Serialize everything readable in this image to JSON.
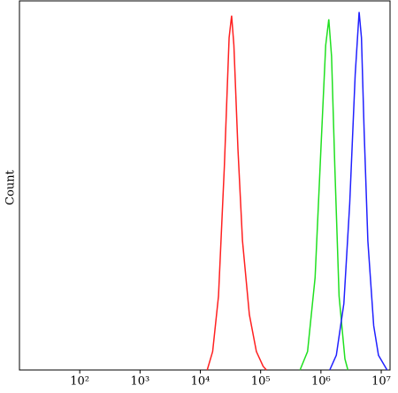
{
  "chart_data": {
    "type": "line",
    "ylabel": "Count",
    "xscale": "log",
    "xlim": [
      10,
      14000000
    ],
    "ylim": [
      0,
      100
    ],
    "xticks": [
      {
        "value": 100,
        "label": "10²"
      },
      {
        "value": 1000,
        "label": "10³"
      },
      {
        "value": 10000,
        "label": "10⁴"
      },
      {
        "value": 100000,
        "label": "10⁵"
      },
      {
        "value": 1000000,
        "label": "10⁶"
      },
      {
        "value": 10000000,
        "label": "10⁷"
      }
    ],
    "series": [
      {
        "color": "#ff2020",
        "x": [
          13000,
          16000,
          20000,
          25000,
          30000,
          33000,
          36000,
          42000,
          50000,
          65000,
          85000,
          110000,
          125000
        ],
        "values": [
          0,
          5,
          20,
          55,
          90,
          96,
          88,
          60,
          35,
          15,
          5,
          1,
          0
        ]
      },
      {
        "color": "#20e020",
        "x": [
          450000,
          600000,
          800000,
          1000000,
          1200000,
          1350000,
          1500000,
          1700000,
          2000000,
          2500000,
          2800000
        ],
        "values": [
          0,
          5,
          25,
          60,
          88,
          95,
          85,
          55,
          20,
          3,
          0
        ]
      },
      {
        "color": "#2020ff",
        "x": [
          1400000,
          1800000,
          2400000,
          3000000,
          3700000,
          4300000,
          4700000,
          5200000,
          6000000,
          7500000,
          9000000,
          12500000
        ],
        "values": [
          0,
          4,
          18,
          45,
          80,
          97,
          90,
          65,
          35,
          12,
          4,
          0
        ]
      }
    ]
  }
}
